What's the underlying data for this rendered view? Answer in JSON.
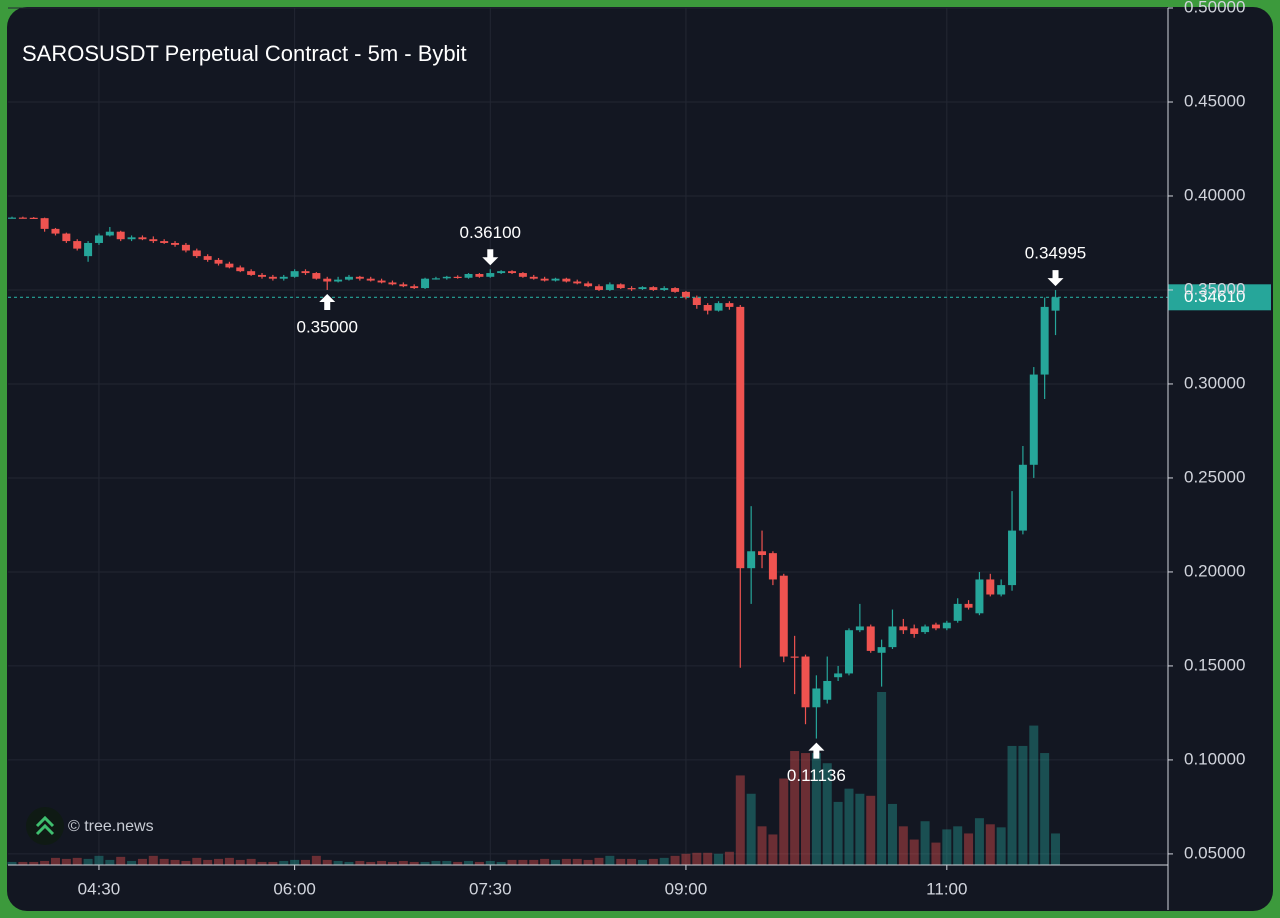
{
  "chart_data": {
    "type": "candlestick",
    "title": "SAROSUSDT Perpetual Contract - 5m - Bybit",
    "watermark": "© tree.news",
    "x": [
      "03:50",
      "03:55",
      "04:00",
      "04:05",
      "04:10",
      "04:15",
      "04:20",
      "04:25",
      "04:30",
      "04:35",
      "04:40",
      "04:45",
      "04:50",
      "04:55",
      "05:00",
      "05:05",
      "05:10",
      "05:15",
      "05:20",
      "05:25",
      "05:30",
      "05:35",
      "05:40",
      "05:45",
      "05:50",
      "05:55",
      "06:00",
      "06:05",
      "06:10",
      "06:15",
      "06:20",
      "06:25",
      "06:30",
      "06:35",
      "06:40",
      "06:45",
      "06:50",
      "06:55",
      "07:00",
      "07:05",
      "07:10",
      "07:15",
      "07:20",
      "07:25",
      "07:30",
      "07:35",
      "07:40",
      "07:45",
      "07:50",
      "07:55",
      "08:00",
      "08:05",
      "08:10",
      "08:15",
      "08:20",
      "08:25",
      "08:30",
      "08:35",
      "08:40",
      "08:45",
      "08:50",
      "08:55",
      "09:00",
      "09:05",
      "09:10",
      "09:15",
      "09:20",
      "09:25",
      "09:30",
      "09:35",
      "09:40",
      "09:45",
      "09:50",
      "09:55",
      "10:00",
      "10:05",
      "10:10",
      "10:15",
      "10:20",
      "10:25",
      "10:30",
      "10:35",
      "10:40",
      "10:45",
      "10:50",
      "10:55",
      "11:00",
      "11:05",
      "11:10",
      "11:15",
      "11:20",
      "11:25",
      "11:30",
      "11:35",
      "11:40",
      "11:45",
      "11:50"
    ],
    "open": [
      0.3885,
      0.3885,
      0.3884,
      0.3882,
      0.3825,
      0.38,
      0.376,
      0.368,
      0.375,
      0.379,
      0.381,
      0.377,
      0.378,
      0.377,
      0.376,
      0.375,
      0.374,
      0.371,
      0.368,
      0.366,
      0.364,
      0.362,
      0.36,
      0.358,
      0.357,
      0.356,
      0.357,
      0.36,
      0.359,
      0.356,
      0.3545,
      0.3555,
      0.357,
      0.356,
      0.355,
      0.354,
      0.353,
      0.352,
      0.351,
      0.356,
      0.3562,
      0.357,
      0.3565,
      0.3585,
      0.357,
      0.359,
      0.36,
      0.359,
      0.357,
      0.356,
      0.355,
      0.356,
      0.3545,
      0.3535,
      0.352,
      0.35,
      0.353,
      0.351,
      0.3505,
      0.3515,
      0.35,
      0.351,
      0.349,
      0.346,
      0.342,
      0.339,
      0.343,
      0.341,
      0.202,
      0.211,
      0.21,
      0.198,
      0.155,
      0.155,
      0.128,
      0.132,
      0.144,
      0.146,
      0.169,
      0.171,
      0.157,
      0.16,
      0.171,
      0.17,
      0.168,
      0.172,
      0.17,
      0.174,
      0.183,
      0.178,
      0.196,
      0.188,
      0.193,
      0.222,
      0.257,
      0.305,
      0.339
    ],
    "high": [
      0.389,
      0.389,
      0.3888,
      0.3885,
      0.383,
      0.3805,
      0.377,
      0.376,
      0.38,
      0.3835,
      0.3815,
      0.379,
      0.379,
      0.3785,
      0.377,
      0.376,
      0.375,
      0.372,
      0.369,
      0.367,
      0.365,
      0.363,
      0.361,
      0.359,
      0.358,
      0.358,
      0.361,
      0.361,
      0.3595,
      0.357,
      0.357,
      0.358,
      0.3575,
      0.357,
      0.356,
      0.355,
      0.354,
      0.353,
      0.3565,
      0.357,
      0.3575,
      0.3578,
      0.359,
      0.359,
      0.361,
      0.3605,
      0.3605,
      0.3595,
      0.358,
      0.357,
      0.3565,
      0.3565,
      0.3555,
      0.3545,
      0.353,
      0.354,
      0.3535,
      0.352,
      0.352,
      0.352,
      0.352,
      0.3515,
      0.3495,
      0.347,
      0.343,
      0.344,
      0.344,
      0.342,
      0.235,
      0.222,
      0.211,
      0.199,
      0.166,
      0.156,
      0.145,
      0.155,
      0.15,
      0.17,
      0.183,
      0.172,
      0.164,
      0.18,
      0.175,
      0.172,
      0.172,
      0.173,
      0.174,
      0.186,
      0.185,
      0.2,
      0.199,
      0.196,
      0.243,
      0.267,
      0.309,
      0.346,
      0.34995
    ],
    "low": [
      0.388,
      0.388,
      0.3878,
      0.381,
      0.379,
      0.375,
      0.371,
      0.365,
      0.374,
      0.3785,
      0.376,
      0.376,
      0.3765,
      0.375,
      0.3745,
      0.373,
      0.37,
      0.367,
      0.365,
      0.363,
      0.3615,
      0.3595,
      0.3575,
      0.356,
      0.355,
      0.355,
      0.3565,
      0.358,
      0.3555,
      0.35,
      0.354,
      0.355,
      0.355,
      0.3545,
      0.3535,
      0.3525,
      0.3515,
      0.3505,
      0.3505,
      0.3555,
      0.3555,
      0.356,
      0.356,
      0.3565,
      0.3565,
      0.3585,
      0.3585,
      0.3565,
      0.3555,
      0.3545,
      0.3545,
      0.354,
      0.353,
      0.3515,
      0.3495,
      0.3495,
      0.3505,
      0.3495,
      0.35,
      0.3495,
      0.3495,
      0.3485,
      0.345,
      0.34,
      0.337,
      0.3385,
      0.3395,
      0.149,
      0.183,
      0.202,
      0.193,
      0.152,
      0.135,
      0.119,
      0.11136,
      0.13,
      0.142,
      0.145,
      0.168,
      0.157,
      0.139,
      0.159,
      0.167,
      0.165,
      0.167,
      0.169,
      0.169,
      0.173,
      0.18,
      0.177,
      0.187,
      0.187,
      0.19,
      0.22,
      0.25,
      0.292,
      0.326
    ],
    "close": [
      0.3885,
      0.3884,
      0.3882,
      0.3825,
      0.38,
      0.376,
      0.372,
      0.375,
      0.379,
      0.381,
      0.377,
      0.378,
      0.377,
      0.376,
      0.375,
      0.374,
      0.371,
      0.368,
      0.366,
      0.364,
      0.362,
      0.36,
      0.358,
      0.357,
      0.356,
      0.357,
      0.36,
      0.359,
      0.356,
      0.3545,
      0.3555,
      0.357,
      0.356,
      0.355,
      0.354,
      0.353,
      0.352,
      0.351,
      0.356,
      0.3562,
      0.357,
      0.3565,
      0.3585,
      0.357,
      0.359,
      0.36,
      0.359,
      0.357,
      0.356,
      0.355,
      0.356,
      0.3545,
      0.3535,
      0.352,
      0.35,
      0.353,
      0.351,
      0.3505,
      0.3515,
      0.35,
      0.351,
      0.349,
      0.346,
      0.342,
      0.339,
      0.343,
      0.341,
      0.202,
      0.211,
      0.209,
      0.196,
      0.155,
      0.1545,
      0.128,
      0.138,
      0.142,
      0.146,
      0.169,
      0.171,
      0.158,
      0.16,
      0.171,
      0.169,
      0.167,
      0.171,
      0.17,
      0.173,
      0.183,
      0.181,
      0.196,
      0.188,
      0.193,
      0.222,
      0.257,
      0.305,
      0.341,
      0.3461
    ],
    "volumes": [
      3,
      3,
      3,
      4,
      7,
      6,
      7,
      6,
      9,
      5,
      8,
      4,
      6,
      9,
      6,
      5,
      4,
      7,
      5,
      6,
      7,
      5,
      6,
      3,
      3,
      4,
      5,
      5,
      9,
      5,
      4,
      3,
      4,
      3,
      4,
      3,
      4,
      3,
      3,
      4,
      4,
      3,
      4,
      3,
      4,
      3,
      5,
      5,
      5,
      6,
      5,
      6,
      6,
      5,
      7,
      9,
      6,
      6,
      5,
      6,
      7,
      9,
      11,
      12,
      12,
      11,
      13,
      88,
      70,
      38,
      30,
      85,
      112,
      110,
      110,
      100,
      62,
      75,
      70,
      68,
      170,
      60,
      38,
      25,
      43,
      22,
      35,
      38,
      31,
      46,
      40,
      37,
      117,
      117,
      137,
      110,
      31
    ],
    "up_color": "#26a69a",
    "down_color": "#ef5350",
    "ylim": [
      0.0441,
      0.5
    ],
    "yticks": [
      {
        "value": 0.05,
        "label": "0.05000"
      },
      {
        "value": 0.1,
        "label": "0.10000"
      },
      {
        "value": 0.15,
        "label": "0.15000"
      },
      {
        "value": 0.2,
        "label": "0.20000"
      },
      {
        "value": 0.25,
        "label": "0.25000"
      },
      {
        "value": 0.3,
        "label": "0.30000"
      },
      {
        "value": 0.35,
        "label": "0.35000"
      },
      {
        "value": 0.4,
        "label": "0.40000"
      },
      {
        "value": 0.45,
        "label": "0.45000"
      },
      {
        "value": 0.5,
        "label": "0.50000"
      }
    ],
    "xticks": [
      "04:30",
      "06:00",
      "07:30",
      "09:00",
      "11:00"
    ],
    "grid": true,
    "last_price": {
      "value": 0.3461,
      "label": "0.34610"
    },
    "annotations": [
      {
        "x": "06:15",
        "value": 0.35,
        "label": "0.35000",
        "kind": "low"
      },
      {
        "x": "07:30",
        "value": 0.361,
        "label": "0.36100",
        "kind": "high"
      },
      {
        "x": "10:00",
        "value": 0.11136,
        "label": "0.11136",
        "kind": "low"
      },
      {
        "x": "11:50",
        "value": 0.34995,
        "label": "0.34995",
        "kind": "high"
      }
    ]
  }
}
